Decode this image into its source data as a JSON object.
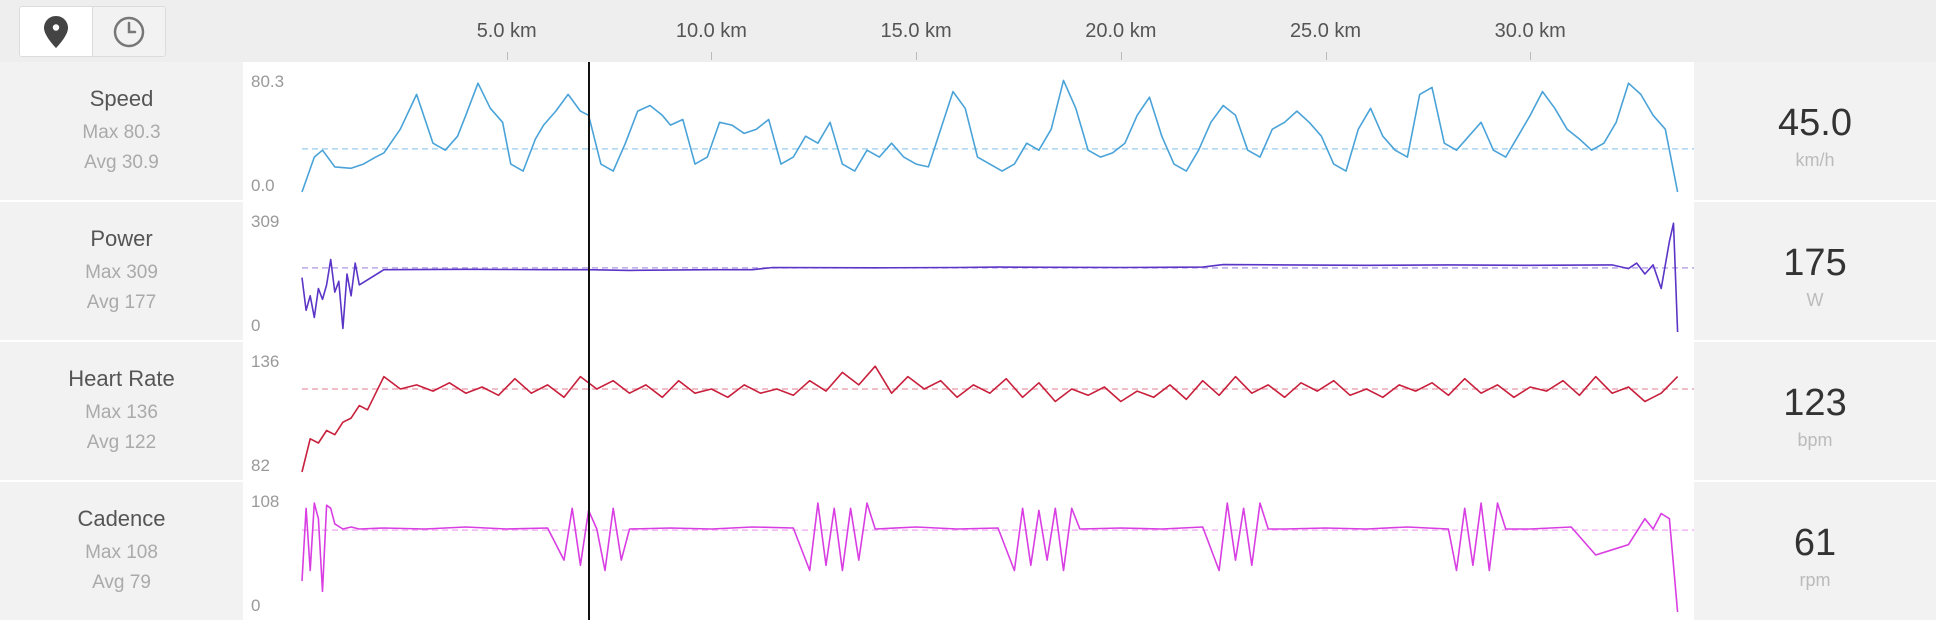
{
  "toggle": {
    "location_icon": "map-pin-icon",
    "time_icon": "clock-icon"
  },
  "chart_data": {
    "type": "line",
    "x_unit": "km",
    "xlim": [
      0,
      34
    ],
    "x_ticks": [
      "5.0 km",
      "10.0 km",
      "15.0 km",
      "20.0 km",
      "25.0 km",
      "30.0 km"
    ],
    "x_tick_values": [
      5,
      10,
      15,
      20,
      25,
      30
    ],
    "cursor_x": 7.0,
    "series": [
      {
        "name": "Speed",
        "max_label": "Max 80.3",
        "avg_label": "Avg 30.9",
        "ymax_label": "80.3",
        "ymin_label": "0.0",
        "ylim": [
          0,
          80.3
        ],
        "avg": 30.9,
        "current_value": "45.0",
        "unit": "km/h",
        "color": "#4aa3d8",
        "avg_color": "#a9d4ee",
        "x": [
          0,
          0.3,
          0.5,
          0.8,
          1.2,
          1.5,
          1.8,
          2.0,
          2.4,
          2.8,
          3.2,
          3.5,
          3.8,
          4.0,
          4.3,
          4.6,
          4.9,
          5.1,
          5.4,
          5.7,
          5.9,
          6.2,
          6.5,
          6.8,
          7.0,
          7.3,
          7.6,
          7.9,
          8.2,
          8.5,
          8.8,
          9.0,
          9.3,
          9.6,
          9.9,
          10.2,
          10.5,
          10.8,
          11.1,
          11.4,
          11.7,
          12.0,
          12.3,
          12.6,
          12.9,
          13.2,
          13.5,
          13.8,
          14.1,
          14.4,
          14.7,
          15.0,
          15.3,
          15.6,
          15.9,
          16.2,
          16.5,
          16.8,
          17.1,
          17.4,
          17.7,
          18.0,
          18.3,
          18.6,
          18.9,
          19.2,
          19.5,
          19.8,
          20.1,
          20.4,
          20.7,
          21.0,
          21.3,
          21.6,
          21.9,
          22.2,
          22.5,
          22.8,
          23.1,
          23.4,
          23.7,
          24.0,
          24.3,
          24.6,
          24.9,
          25.2,
          25.5,
          25.8,
          26.1,
          26.4,
          26.7,
          27.0,
          27.3,
          27.6,
          27.9,
          28.2,
          28.5,
          28.8,
          29.1,
          29.4,
          29.7,
          30.0,
          30.3,
          30.6,
          30.9,
          31.2,
          31.5,
          31.8,
          32.1,
          32.4,
          32.7,
          33.0,
          33.3,
          33.6
        ],
        "values": [
          0,
          25,
          30,
          18,
          17,
          20,
          25,
          28,
          45,
          70,
          35,
          30,
          40,
          55,
          78,
          60,
          50,
          20,
          15,
          38,
          48,
          58,
          70,
          58,
          55,
          20,
          15,
          35,
          58,
          62,
          55,
          48,
          52,
          20,
          25,
          50,
          48,
          42,
          45,
          52,
          20,
          25,
          40,
          35,
          50,
          20,
          15,
          30,
          25,
          35,
          25,
          20,
          18,
          45,
          72,
          60,
          25,
          20,
          15,
          20,
          35,
          30,
          45,
          80,
          60,
          30,
          25,
          28,
          35,
          55,
          68,
          40,
          20,
          15,
          30,
          50,
          62,
          55,
          30,
          25,
          45,
          50,
          58,
          50,
          40,
          20,
          15,
          45,
          60,
          40,
          30,
          25,
          70,
          75,
          35,
          30,
          40,
          50,
          30,
          25,
          40,
          55,
          72,
          60,
          45,
          38,
          30,
          35,
          50,
          78,
          70,
          55,
          45,
          0
        ]
      },
      {
        "name": "Power",
        "max_label": "Max 309",
        "avg_label": "Avg 177",
        "ymax_label": "309",
        "ymin_label": "0",
        "ylim": [
          0,
          309
        ],
        "avg": 177,
        "current_value": "175",
        "unit": "W",
        "color": "#5b35c7",
        "avg_color": "#b9a8e6",
        "x": [
          0,
          0.1,
          0.2,
          0.3,
          0.4,
          0.5,
          0.6,
          0.7,
          0.8,
          0.9,
          1.0,
          1.1,
          1.2,
          1.3,
          1.4,
          2,
          4,
          6,
          7,
          8,
          10,
          11,
          11.5,
          14,
          16,
          17,
          20,
          22,
          22.5,
          24,
          26,
          28,
          30,
          32,
          32.4,
          32.6,
          32.8,
          33.0,
          33.2,
          33.4,
          33.5,
          33.6
        ],
        "values": [
          150,
          60,
          100,
          40,
          120,
          90,
          130,
          200,
          110,
          140,
          10,
          160,
          100,
          190,
          130,
          172,
          173,
          172,
          172,
          170,
          172,
          172,
          178,
          177,
          178,
          179,
          178,
          179,
          186,
          185,
          184,
          185,
          184,
          185,
          175,
          190,
          160,
          185,
          120,
          250,
          300,
          0
        ]
      },
      {
        "name": "Heart Rate",
        "max_label": "Max 136",
        "avg_label": "Avg 122",
        "ymax_label": "136",
        "ymin_label": "82",
        "ylim": [
          82,
          136
        ],
        "avg": 122,
        "current_value": "123",
        "unit": "bpm",
        "color": "#c8203c",
        "avg_color": "#eba8b4",
        "x": [
          0,
          0.2,
          0.4,
          0.6,
          0.8,
          1.0,
          1.2,
          1.4,
          1.6,
          1.8,
          2.0,
          2.4,
          2.8,
          3.2,
          3.6,
          4.0,
          4.4,
          4.8,
          5.2,
          5.6,
          6.0,
          6.4,
          6.8,
          7.2,
          7.6,
          8.0,
          8.4,
          8.8,
          9.2,
          9.6,
          10.0,
          10.4,
          10.8,
          11.2,
          11.6,
          12.0,
          12.4,
          12.8,
          13.2,
          13.6,
          14.0,
          14.4,
          14.8,
          15.2,
          15.6,
          16.0,
          16.4,
          16.8,
          17.2,
          17.6,
          18.0,
          18.4,
          18.8,
          19.2,
          19.6,
          20.0,
          20.4,
          20.8,
          21.2,
          21.6,
          22.0,
          22.4,
          22.8,
          23.2,
          23.6,
          24.0,
          24.4,
          24.8,
          25.2,
          25.6,
          26.0,
          26.4,
          26.8,
          27.2,
          27.6,
          28.0,
          28.4,
          28.8,
          29.2,
          29.6,
          30.0,
          30.4,
          30.8,
          31.2,
          31.6,
          32.0,
          32.4,
          32.8,
          33.2,
          33.6
        ],
        "values": [
          82,
          98,
          96,
          102,
          100,
          106,
          108,
          114,
          112,
          120,
          128,
          122,
          124,
          121,
          125,
          120,
          123,
          119,
          127,
          120,
          124,
          118,
          128,
          122,
          126,
          120,
          124,
          118,
          126,
          120,
          122,
          118,
          124,
          120,
          122,
          119,
          126,
          121,
          130,
          124,
          133,
          120,
          128,
          122,
          126,
          118,
          124,
          120,
          127,
          118,
          125,
          116,
          122,
          119,
          123,
          116,
          121,
          118,
          124,
          117,
          126,
          119,
          128,
          120,
          124,
          118,
          125,
          121,
          126,
          119,
          122,
          118,
          124,
          121,
          125,
          119,
          127,
          120,
          124,
          118,
          123,
          121,
          126,
          119,
          128,
          120,
          123,
          116,
          120,
          128
        ]
      },
      {
        "name": "Cadence",
        "max_label": "Max 108",
        "avg_label": "Avg 79",
        "ymax_label": "108",
        "ymin_label": "0",
        "ylim": [
          0,
          108
        ],
        "avg": 79,
        "current_value": "61",
        "unit": "rpm",
        "color": "#d93ee3",
        "avg_color": "#f0b2f3",
        "x": [
          0,
          0.1,
          0.2,
          0.3,
          0.4,
          0.5,
          0.6,
          0.7,
          0.8,
          1.0,
          1.2,
          1.4,
          2.0,
          3.0,
          4.0,
          5.0,
          6.0,
          6.4,
          6.6,
          6.8,
          7.0,
          7.2,
          7.4,
          7.6,
          7.8,
          8.0,
          9.0,
          10.0,
          11.0,
          12.0,
          12.4,
          12.6,
          12.8,
          13.0,
          13.2,
          13.4,
          13.6,
          13.8,
          14.0,
          15.0,
          16.0,
          17.0,
          17.4,
          17.6,
          17.8,
          18.0,
          18.2,
          18.4,
          18.6,
          18.8,
          19.0,
          20.0,
          21.0,
          22.0,
          22.4,
          22.6,
          22.8,
          23.0,
          23.2,
          23.4,
          23.6,
          24.0,
          25.0,
          26.0,
          27.0,
          28.0,
          28.2,
          28.4,
          28.6,
          28.8,
          29.0,
          29.2,
          29.4,
          30.0,
          31.0,
          31.6,
          32.0,
          32.4,
          32.8,
          33.0,
          33.2,
          33.4,
          33.6
        ],
        "values": [
          30,
          100,
          40,
          105,
          90,
          20,
          103,
          100,
          85,
          80,
          82,
          80,
          81,
          80,
          82,
          80,
          81,
          50,
          100,
          45,
          98,
          80,
          40,
          100,
          50,
          80,
          81,
          80,
          82,
          81,
          40,
          105,
          45,
          100,
          40,
          100,
          50,
          105,
          80,
          82,
          80,
          81,
          40,
          100,
          45,
          98,
          50,
          100,
          40,
          100,
          80,
          81,
          80,
          82,
          40,
          105,
          50,
          100,
          45,
          105,
          80,
          80,
          81,
          80,
          82,
          80,
          40,
          100,
          45,
          105,
          40,
          105,
          80,
          80,
          82,
          55,
          60,
          65,
          90,
          80,
          95,
          90,
          0
        ]
      }
    ]
  }
}
